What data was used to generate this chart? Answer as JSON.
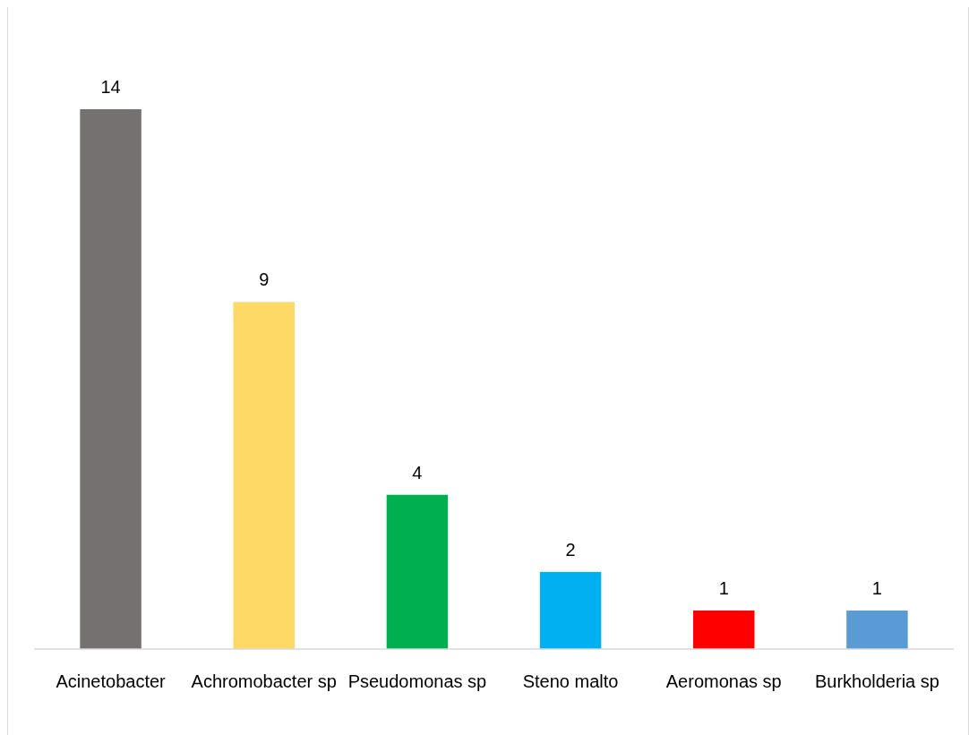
{
  "chart_data": {
    "type": "bar",
    "categories": [
      "Acinetobacter",
      "Achromobacter sp",
      "Pseudomonas sp",
      "Steno malto",
      "Aeromonas sp",
      "Burkholderia sp"
    ],
    "values": [
      14,
      9,
      4,
      2,
      1,
      1
    ],
    "colors": [
      "#767171",
      "#ffd966",
      "#00b050",
      "#00b0f0",
      "#ff0000",
      "#5b9bd5"
    ],
    "data_labels": true
  }
}
